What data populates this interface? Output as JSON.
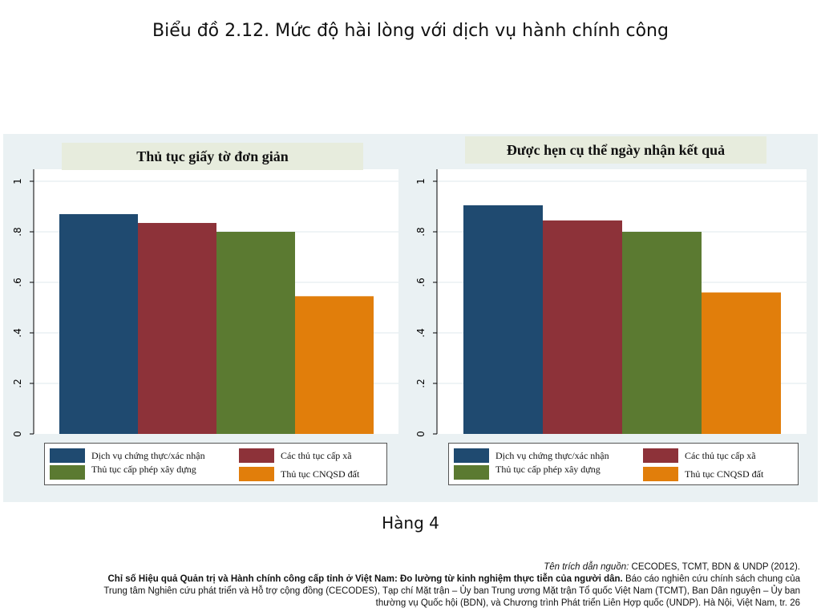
{
  "page": {
    "title": "Biểu đồ 2.12. Mức độ hài lòng với dịch vụ hành chính công",
    "caption": "Hàng 4"
  },
  "colors": {
    "series": [
      "#1f4a70",
      "#8d3239",
      "#5b7a31",
      "#e17e0b"
    ],
    "panel_background": "#eaf1f3",
    "title_box": "#e7ecdd"
  },
  "chart_data": [
    {
      "type": "bar",
      "title": "Thủ tục giấy tờ đơn giản",
      "ylim": [
        0,
        1
      ],
      "yticks": [
        0,
        0.2,
        0.4,
        0.6,
        0.8,
        1
      ],
      "ytick_labels": [
        "0",
        ".2",
        ".4",
        ".6",
        ".8",
        "1"
      ],
      "grid": true,
      "legend_position": "bottom",
      "series": [
        {
          "name": "Dịch vụ chứng thực/xác nhận",
          "values": [
            0.87
          ]
        },
        {
          "name": "Các thủ tục cấp xã",
          "values": [
            0.835
          ]
        },
        {
          "name": "Thủ tục cấp phép xây dựng",
          "values": [
            0.8
          ]
        },
        {
          "name": "Thủ tục CNQSD đất",
          "values": [
            0.545
          ]
        }
      ]
    },
    {
      "type": "bar",
      "title": "Được hẹn cụ thể ngày nhận kết quả",
      "ylim": [
        0,
        1
      ],
      "yticks": [
        0,
        0.2,
        0.4,
        0.6,
        0.8,
        1
      ],
      "ytick_labels": [
        "0",
        ".2",
        ".4",
        ".6",
        ".8",
        "1"
      ],
      "grid": true,
      "legend_position": "bottom",
      "series": [
        {
          "name": "Dịch vụ chứng thực/xác nhận",
          "values": [
            0.905
          ]
        },
        {
          "name": "Các thủ tục cấp xã",
          "values": [
            0.845
          ]
        },
        {
          "name": "Thủ tục cấp phép xây dựng",
          "values": [
            0.8
          ]
        },
        {
          "name": "Thủ tục CNQSD đất",
          "values": [
            0.56
          ]
        }
      ]
    }
  ],
  "citation": {
    "lead_label": "Tên trích dẫn nguồn:",
    "lead_text": "CECODES, TCMT, BDN & UNDP (2012).",
    "report_title": "Chỉ số Hiệu quả Quản trị và Hành chính công cấp tỉnh ở Việt Nam: Đo lường từ kinh nghiệm thực tiễn của người dân.",
    "line2_rest": "Báo cáo nghiên cứu chính sách chung của",
    "line3": "Trung tâm Nghiên cứu phát triển và Hỗ trợ cộng đồng (CECODES), Tạp chí Mặt trận – Ủy ban Trung ương Mặt trận Tổ quốc Việt Nam (TCMT), Ban Dân nguyện – Ủy ban",
    "line4": "thường vụ Quốc hội (BDN), và Chương trình Phát triển Liên Hợp quốc (UNDP). Hà Nội, Việt Nam, tr. 26"
  }
}
